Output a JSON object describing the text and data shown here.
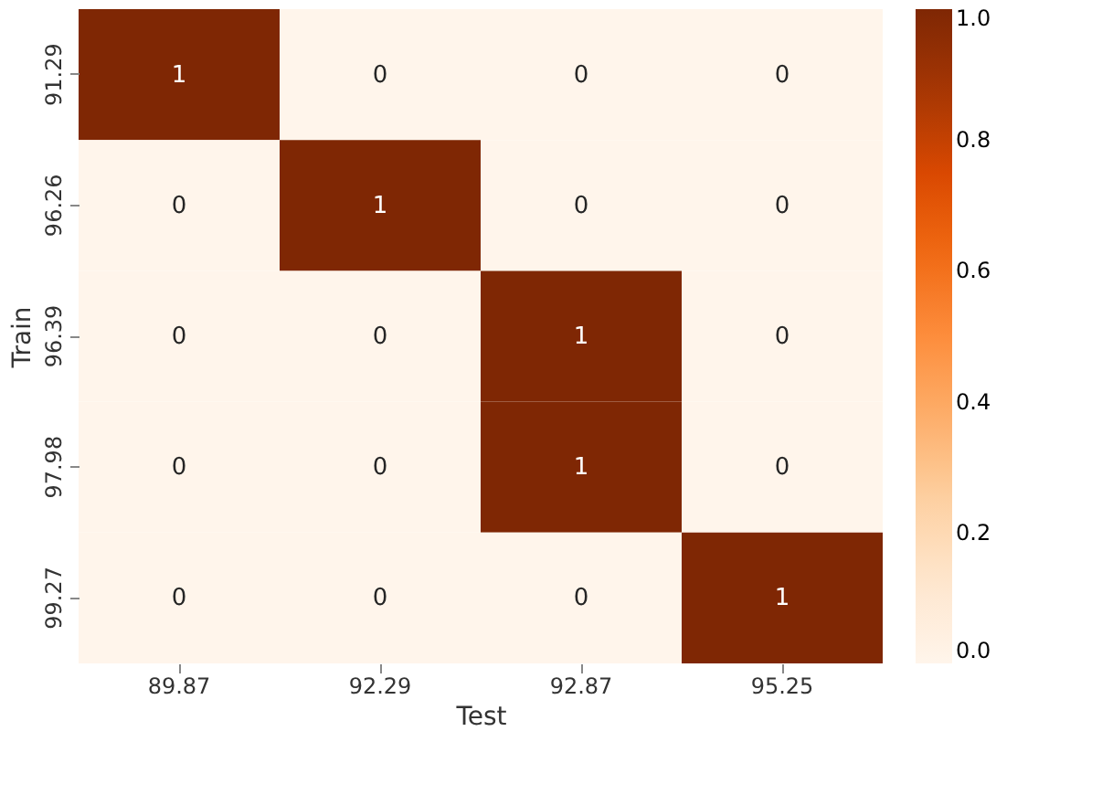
{
  "chart_data": {
    "type": "heatmap",
    "xlabel": "Test",
    "ylabel": "Train",
    "categories": [
      "89.87",
      "92.29",
      "92.87",
      "95.25"
    ],
    "y_categories": [
      "91.29",
      "96.26",
      "96.39",
      "97.98",
      "99.27"
    ],
    "cells": [
      [
        1,
        0,
        0,
        0
      ],
      [
        0,
        1,
        0,
        0
      ],
      [
        0,
        0,
        1,
        0
      ],
      [
        0,
        0,
        1,
        0
      ],
      [
        0,
        0,
        0,
        1
      ]
    ],
    "clim": [
      0,
      1
    ],
    "cticks": [
      {
        "value": 0,
        "label": "0.0"
      },
      {
        "value": 0.2,
        "label": "0.2"
      },
      {
        "value": 0.4,
        "label": "0.4"
      },
      {
        "value": 0.6,
        "label": "0.6"
      },
      {
        "value": 0.8,
        "label": "0.8"
      },
      {
        "value": 1,
        "label": "1.0"
      }
    ],
    "data_labels": true
  }
}
